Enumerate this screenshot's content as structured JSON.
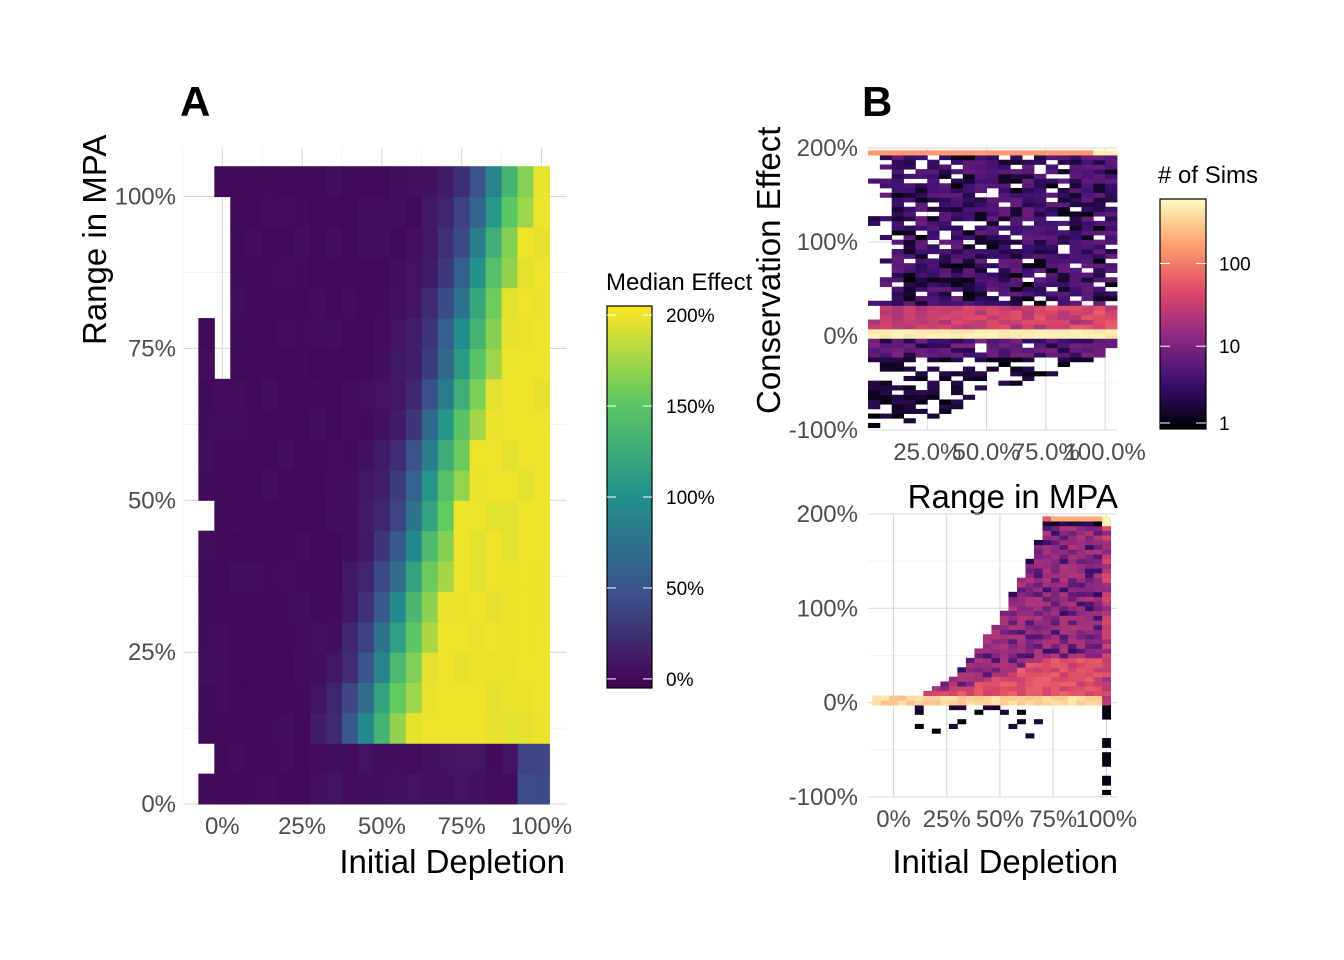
{
  "chart_data": [
    {
      "panel": "A",
      "type": "heatmap",
      "xlabel": "Initial Depletion",
      "ylabel": "Range in MPA",
      "x_ticks": [
        "0%",
        "25%",
        "50%",
        "75%",
        "100%"
      ],
      "y_ticks": [
        "0%",
        "25%",
        "50%",
        "75%",
        "100%"
      ],
      "xlim": [
        -0.12,
        1.08
      ],
      "ylim": [
        0,
        1.08
      ],
      "colorbar": {
        "title": "Median Effect",
        "palette": "viridis",
        "colors": [
          "#440154",
          "#3b528b",
          "#21908c",
          "#5dc863",
          "#fde725"
        ],
        "ticks": [
          "0%",
          "50%",
          "100%",
          "150%",
          "200%"
        ],
        "tick_values": [
          0,
          0.5,
          1.0,
          1.5,
          2.0
        ],
        "range": [
          -0.05,
          2.05
        ]
      },
      "x_cells": [
        -0.05,
        0,
        0.05,
        0.1,
        0.15,
        0.2,
        0.25,
        0.3,
        0.35,
        0.4,
        0.45,
        0.5,
        0.55,
        0.6,
        0.65,
        0.7,
        0.75,
        0.8,
        0.85,
        0.9,
        0.95,
        1.0
      ],
      "y_cells": [
        0.025,
        0.075,
        0.125,
        0.175,
        0.225,
        0.275,
        0.325,
        0.375,
        0.425,
        0.475,
        0.525,
        0.575,
        0.625,
        0.675,
        0.725,
        0.775,
        0.825,
        0.875,
        0.925,
        0.975,
        1.025
      ],
      "z_missing": [
        [
          0.0,
          0.95
        ],
        [
          0.0,
          0.9
        ],
        [
          0.0,
          0.85
        ],
        [
          0.0,
          0.8
        ],
        [
          0.0,
          0.75
        ],
        [
          0.0,
          0.7
        ],
        [
          -0.05,
          1.0
        ],
        [
          -0.05,
          0.95
        ],
        [
          -0.05,
          0.9
        ],
        [
          -0.05,
          0.85
        ],
        [
          -0.05,
          0.8
        ],
        [
          -0.05,
          0.45
        ],
        [
          -0.05,
          0.05
        ]
      ],
      "z_note": "median effect per cell (fraction): transitions from ~0 at low depletion to ~2.0 at high depletion"
    },
    {
      "panel": "B",
      "type": "heatmap",
      "facets": [
        {
          "xlabel": "Range in MPA",
          "ylabel": "Conservation Effect",
          "x_ticks": [
            "25.0%",
            "50.0%",
            "75.0%",
            "100.0%"
          ],
          "x_tick_values": [
            0.25,
            0.5,
            0.75,
            1.0
          ],
          "xlim": [
            0,
            1.05
          ],
          "y_ticks": [
            "-100%",
            "0%",
            "100%",
            "200%"
          ],
          "y_tick_values": [
            -1,
            0,
            1,
            2
          ],
          "ylim": [
            -1.0,
            2.0
          ]
        },
        {
          "xlabel": "Initial Depletion",
          "ylabel": "",
          "x_ticks": [
            "0%",
            "25%",
            "50%",
            "75%",
            "100%"
          ],
          "x_tick_values": [
            0,
            0.25,
            0.5,
            0.75,
            1.0
          ],
          "xlim": [
            -0.12,
            1.05
          ],
          "y_ticks": [
            "-100%",
            "0%",
            "100%",
            "200%"
          ],
          "y_tick_values": [
            -1,
            0,
            1,
            2
          ],
          "ylim": [
            -1.0,
            2.0
          ]
        }
      ],
      "colorbar": {
        "title": "# of Sims",
        "palette": "magma",
        "scale": "log",
        "colors": [
          "#000004",
          "#3b0f70",
          "#8c2981",
          "#de4968",
          "#fe9f6d",
          "#fcfdbf"
        ],
        "ticks": [
          "1",
          "10",
          "100"
        ],
        "tick_values": [
          1,
          10,
          100
        ],
        "range": [
          1,
          600
        ]
      }
    }
  ],
  "panels": {
    "a_label": "A",
    "b_label": "B"
  }
}
